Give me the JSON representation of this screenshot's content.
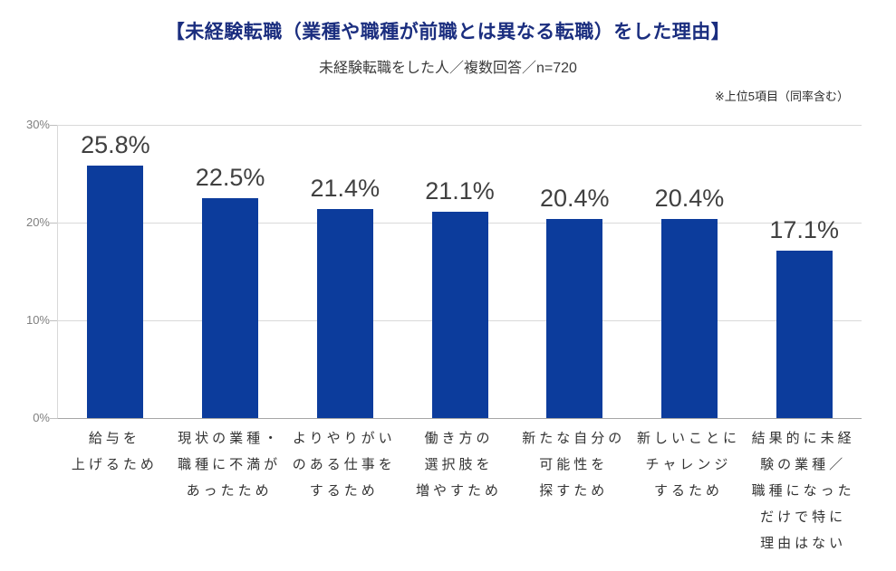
{
  "header": {
    "title": "【未経験転職（業種や職種が前職とは異なる転職）をした理由】",
    "subtitle": "未経験転職をした人／複数回答／n=720",
    "note": "※上位5項目（同率含む）"
  },
  "colors": {
    "bar": "#0c3c9c",
    "title_text": "#1b2e7f",
    "value_label": "#404040",
    "grid": "#d9d9d9",
    "axis": "#a6a6a6",
    "y_tick_label": "#7f7f7f",
    "x_tick_label": "#333333"
  },
  "chart_data": {
    "type": "bar",
    "title": "【未経験転職（業種や職種が前職とは異なる転職）をした理由】",
    "subtitle": "未経験転職をした人／複数回答／n=720",
    "annotation": "※上位5項目（同率含む）",
    "categories": [
      "給与を\n上げるため",
      "現状の業種・\n職種に不満が\nあったため",
      "よりやりがい\nのある仕事を\nするため",
      "働き方の\n選択肢を\n増やすため",
      "新たな自分の\n可能性を\n探すため",
      "新しいことに\nチャレンジ\nするため",
      "結果的に未経\n験の業種／\n職種になった\nだけで特に\n理由はない"
    ],
    "values": [
      25.8,
      22.5,
      21.4,
      21.1,
      20.4,
      20.4,
      17.1
    ],
    "value_labels": [
      "25.8%",
      "22.5%",
      "21.4%",
      "21.1%",
      "20.4%",
      "20.4%",
      "17.1%"
    ],
    "xlabel": "",
    "ylabel": "",
    "ylim": [
      0,
      30
    ],
    "yticks": [
      0,
      10,
      20,
      30
    ],
    "ytick_labels": [
      "0%",
      "10%",
      "20%",
      "30%"
    ],
    "grid": true,
    "legend": false
  }
}
